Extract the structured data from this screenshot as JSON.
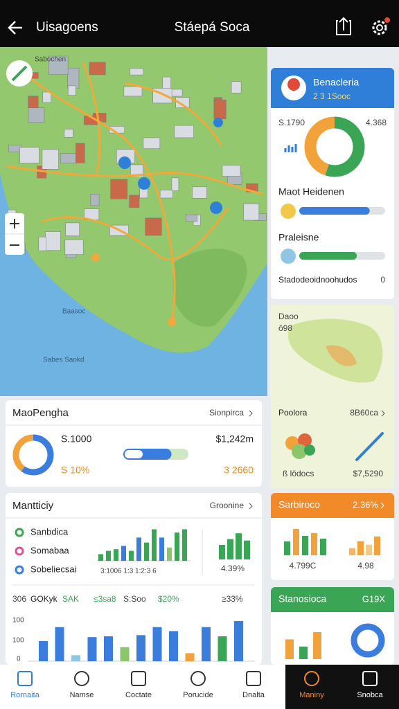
{
  "top_bar": {
    "title": "Uisagoens",
    "subtitle": "Stáepá Soca"
  },
  "map": {
    "labels": [
      "Sabochen",
      "Sabes Saokd",
      "Baasoc"
    ]
  },
  "summary_card": {
    "title": "Benacleria",
    "subtitle": "2 3 1Sooc",
    "left_value": "S.1790",
    "right_value": "4.368",
    "donut": {
      "values": [
        55,
        45
      ],
      "colors": [
        "#3aa655",
        "#f2a23a"
      ]
    },
    "rows": [
      {
        "label": "Maot Heidenen",
        "value": 82,
        "color": "#3b7ddd"
      },
      {
        "label": "Praleisne",
        "value": 67,
        "color": "#3aa655"
      }
    ],
    "footer_label": "Stadodeoidnoohudos",
    "footer_value": 0
  },
  "region_card": {
    "top_label": "Daoo",
    "top_sub": "ô98",
    "title": "Poolora",
    "link": "8B60ca",
    "left_value": "ß lödocs",
    "right_value": "$7,5290"
  },
  "map_panel": {
    "title": "MaoPengha",
    "link": "Sionpirca",
    "left_value": "S.1000",
    "left_sub": "S 10%",
    "right_value": "$1,242m",
    "right_sub": "3 2660",
    "donut": {
      "values": [
        60,
        40
      ],
      "colors": [
        "#3b7ddd",
        "#f2a23a"
      ]
    },
    "progress": 74
  },
  "activity": {
    "title": "Mantticiy",
    "link": "Groonine",
    "legend": [
      {
        "label": "Sanbdica",
        "color": "#3aa655"
      },
      {
        "label": "Somabaa",
        "color": "#d9559a"
      },
      {
        "label": "Sobeliecsai",
        "color": "#3b7ddd"
      }
    ],
    "bars": {
      "values": [
        20,
        30,
        35,
        45,
        30,
        70,
        55,
        95,
        70,
        40,
        85,
        95
      ],
      "colors": [
        "#3aa655",
        "#3aa655",
        "#3aa655",
        "#3b7ddd",
        "#3aa655",
        "#3b7ddd",
        "#3aa655",
        "#3aa655",
        "#3b7ddd",
        "#8cc56a",
        "#3aa655",
        "#3aa655"
      ]
    },
    "axis_text": "3:1006   1:3   1:2:3   6",
    "side_bars": {
      "values": [
        50,
        70,
        90,
        65
      ],
      "colors": [
        "#3aa655",
        "#3aa655",
        "#3aa655",
        "#3aa655"
      ]
    },
    "side_value": "4.39%",
    "row": [
      "306",
      "GOKyk",
      "SAK",
      "≤3sa8",
      "S:Soo",
      "$20%",
      "≥33%"
    ],
    "row_colors": [
      "#444",
      "#222",
      "#3aa655",
      "#3aa655",
      "#444",
      "#3aa655",
      "#444"
    ],
    "y_labels": [
      "100",
      "100",
      "0"
    ],
    "lower_bars": {
      "values": [
        50,
        85,
        15,
        60,
        62,
        35,
        65,
        85,
        75,
        20,
        85,
        62,
        100
      ],
      "colors": [
        "#3b7ddd",
        "#3b7ddd",
        "#8fc6e8",
        "#3b7ddd",
        "#3b7ddd",
        "#8cc56a",
        "#3b7ddd",
        "#3b7ddd",
        "#3b7ddd",
        "#f2a23a",
        "#3b7ddd",
        "#3aa655",
        "#3b7ddd"
      ]
    }
  },
  "stats_card": {
    "title": "Sarbiroco",
    "value": "2.36%",
    "bars_left": {
      "values": [
        50,
        95,
        70,
        80,
        60
      ],
      "colors": [
        "#3aa655",
        "#f2a23a",
        "#3aa655",
        "#f2a23a",
        "#3aa655"
      ]
    },
    "bars_right": {
      "values": [
        30,
        60,
        45,
        80
      ],
      "colors": [
        "#f2b56a",
        "#f2a23a",
        "#f2c98a",
        "#f2a23a"
      ]
    },
    "left_label": "4.799C",
    "right_label": "4.98"
  },
  "status_card": {
    "title": "Stanosioca",
    "value": "G19X",
    "bars": {
      "values": [
        55,
        35,
        75
      ],
      "colors": [
        "#f2a23a",
        "#3aa655",
        "#f2a23a"
      ]
    },
    "ring": {
      "values": [
        100
      ],
      "colors": [
        "#3b7ddd"
      ]
    }
  },
  "nav": [
    "Rornaita",
    "Namse",
    "Coctate",
    "Porucide",
    "Dnalta",
    "Maniny",
    "Snobca"
  ]
}
